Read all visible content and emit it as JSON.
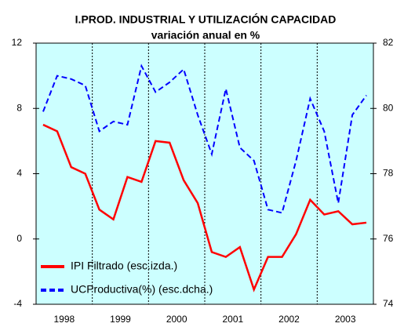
{
  "chart_data": {
    "type": "line",
    "title": "I.PROD. INDUSTRIAL Y UTILIZACIÓN CAPACIDAD",
    "subtitle": "variación anual en %",
    "x": [
      1998,
      1998.25,
      1998.5,
      1998.75,
      1999,
      1999.25,
      1999.5,
      1999.75,
      2000,
      2000.25,
      2000.5,
      2000.75,
      2001,
      2001.25,
      2001.5,
      2001.75,
      2002,
      2002.25,
      2002.5,
      2002.75,
      2003,
      2003.25,
      2003.5,
      2003.75
    ],
    "xlim": [
      1997.875,
      2003.875
    ],
    "xticks": [
      {
        "value": 1998.375,
        "label": "1998"
      },
      {
        "value": 1999.375,
        "label": "1999"
      },
      {
        "value": 2000.375,
        "label": "2000"
      },
      {
        "value": 2001.375,
        "label": "2001"
      },
      {
        "value": 2002.375,
        "label": "2002"
      },
      {
        "value": 2003.375,
        "label": "2003"
      }
    ],
    "ylim": [
      -4,
      12
    ],
    "yticks": [
      -4,
      0,
      4,
      8,
      12
    ],
    "y2lim": [
      74,
      82
    ],
    "y2ticks": [
      74,
      76,
      78,
      80,
      82
    ],
    "legend": "lower left",
    "series": [
      {
        "name": "IPI Filtrado (esc.izda.)",
        "color": "#ff0000",
        "dash": false,
        "values": [
          7.0,
          6.6,
          4.4,
          4.0,
          1.8,
          1.2,
          3.8,
          3.5,
          6.0,
          5.9,
          3.6,
          2.2,
          -0.8,
          -1.1,
          -0.5,
          -3.1,
          -1.1,
          -1.1,
          0.3,
          2.4,
          1.5,
          1.7,
          0.9,
          1.0
        ]
      },
      {
        "name": "UCProductiva(%) (esc.dcha.)",
        "color": "#0000ff",
        "dash": true,
        "axis": "y2",
        "values": [
          79.9,
          81.0,
          80.9,
          80.7,
          79.3,
          79.6,
          79.5,
          81.3,
          80.5,
          80.8,
          81.2,
          79.8,
          78.6,
          80.6,
          78.8,
          78.4,
          76.9,
          76.8,
          78.4,
          80.3,
          79.3,
          77.1,
          79.8,
          80.4
        ]
      }
    ]
  }
}
